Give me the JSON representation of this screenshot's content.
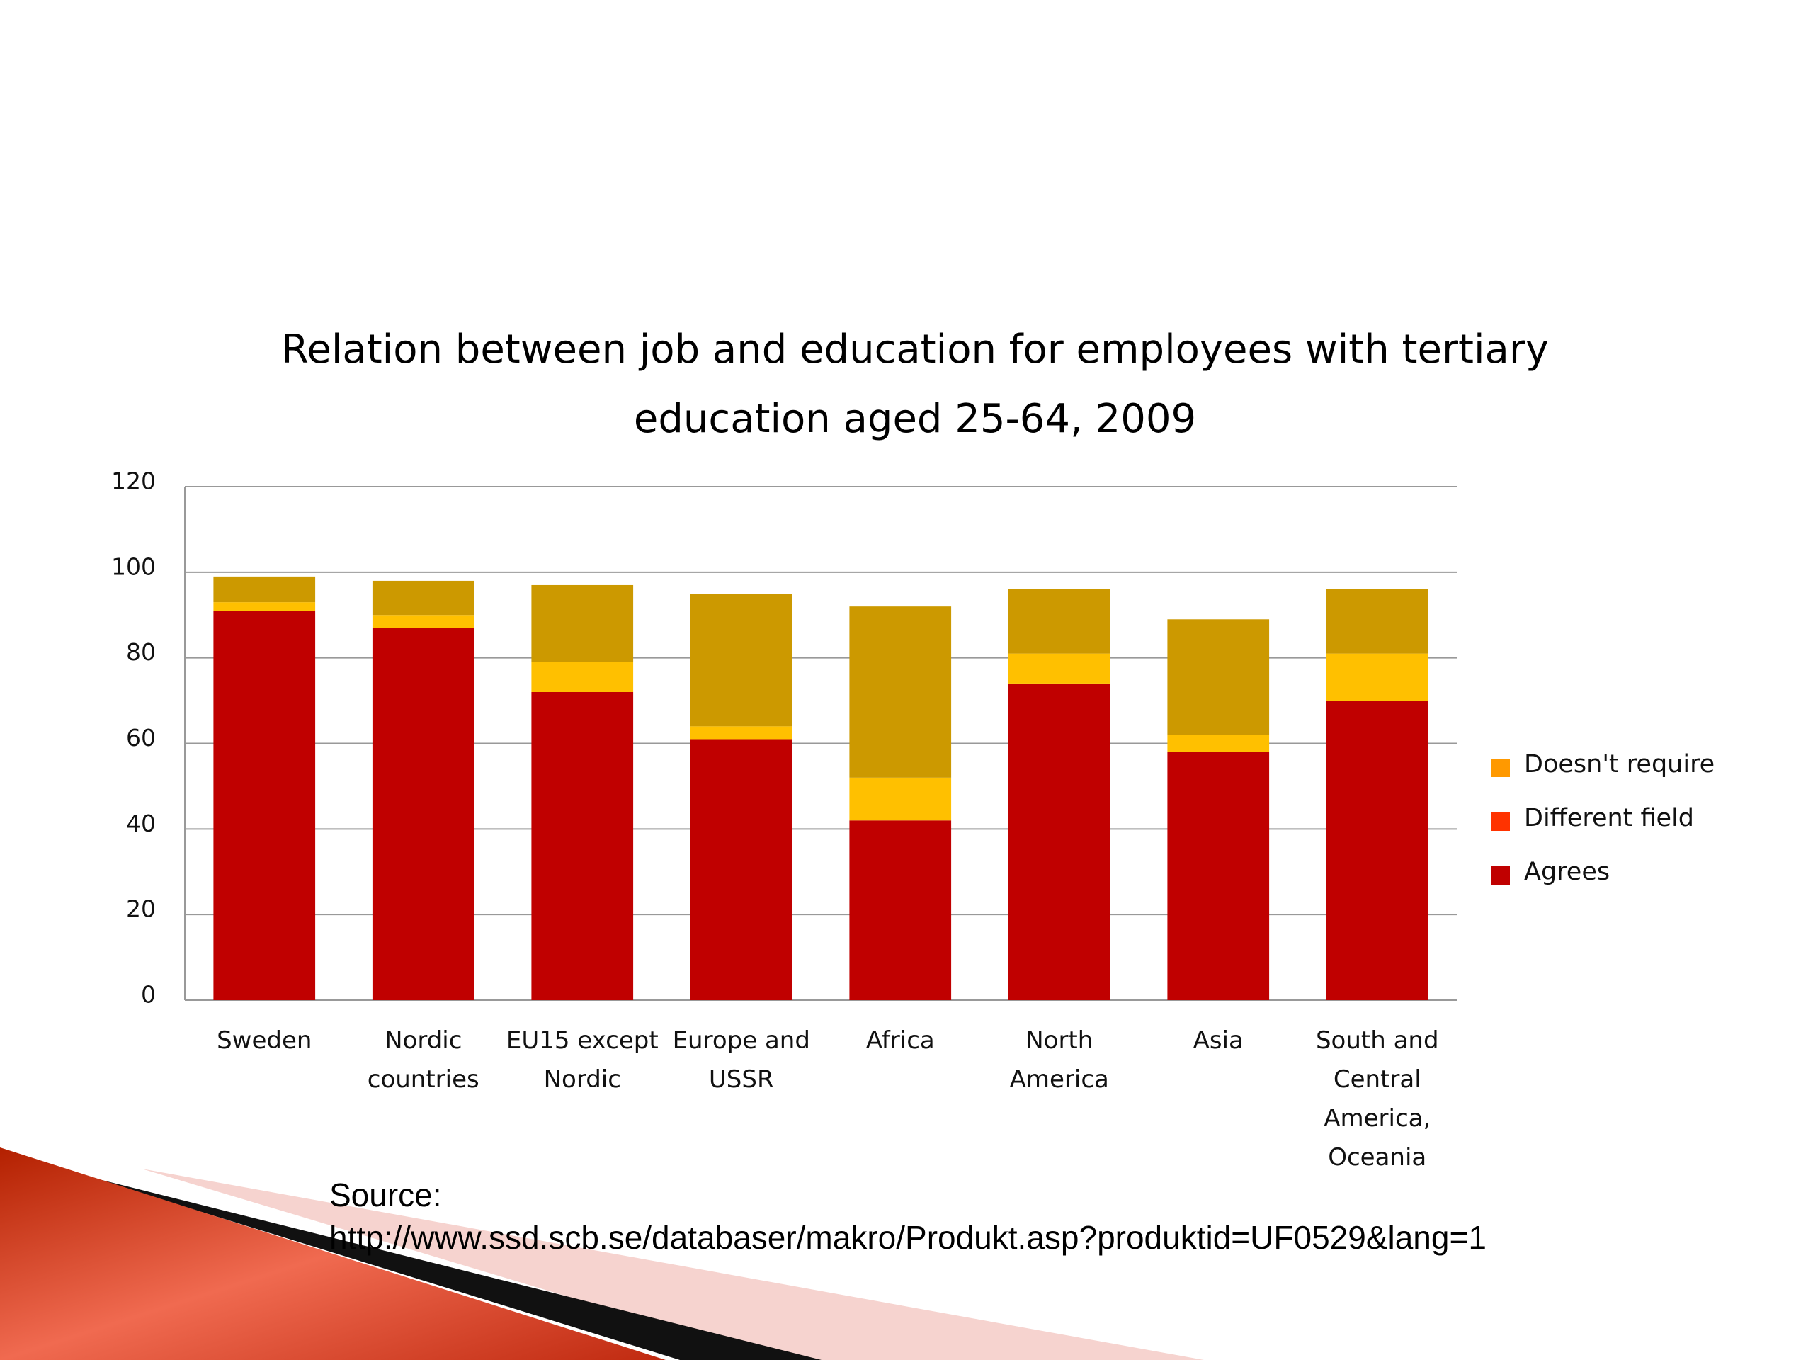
{
  "chart_data": {
    "type": "stacked_bar",
    "title": "Relation between job and education for employees with tertiary education aged 25-64, 2009",
    "categories": [
      "Sweden",
      "Nordic countries",
      "EU15 except Nordic",
      "Europe and USSR",
      "Africa",
      "North America",
      "Asia",
      "South and Central America, Oceania"
    ],
    "series": [
      {
        "name": "Agrees",
        "color": "#c00000",
        "legend_color": "#c00000",
        "values": [
          91,
          87,
          72,
          61,
          42,
          74,
          58,
          70
        ]
      },
      {
        "name": "Different field",
        "color": "#ffc000",
        "legend_color": "#ff3300",
        "values": [
          2,
          3,
          7,
          3,
          10,
          7,
          4,
          11
        ]
      },
      {
        "name": "Doesn't require",
        "color": "#cc9900",
        "legend_color": "#ff9900",
        "values": [
          6,
          8,
          18,
          31,
          40,
          15,
          27,
          15
        ]
      }
    ],
    "ylim": [
      0,
      120
    ],
    "yticks": [
      0,
      20,
      40,
      60,
      80,
      100,
      120
    ],
    "grid": true,
    "legend": "right",
    "source_label": "Source:",
    "source_url": "http://www.ssd.scb.se/databaser/makro/Produkt.asp?produktid=UF0529&lang=1"
  }
}
